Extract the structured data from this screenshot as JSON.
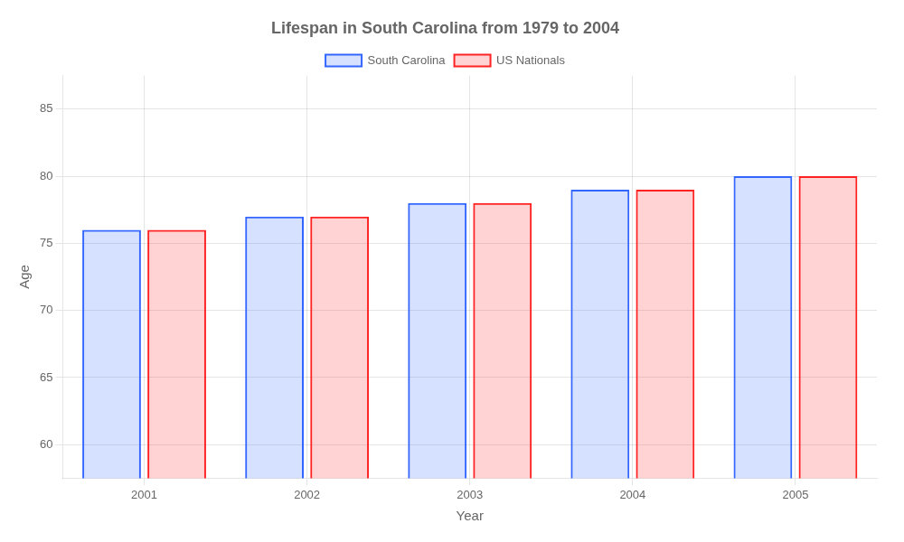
{
  "chart_data": {
    "type": "bar",
    "title": "Lifespan in South Carolina from 1979 to 2004",
    "x_label": "Year",
    "y_label": "Age",
    "categories": [
      "2001",
      "2002",
      "2003",
      "2004",
      "2005"
    ],
    "series": [
      {
        "name": "South Carolina",
        "color": "#3366ff",
        "values": [
          76,
          77,
          78,
          79,
          80
        ]
      },
      {
        "name": "US Nationals",
        "color": "#ff2222",
        "values": [
          76,
          77,
          78,
          79,
          80
        ]
      }
    ],
    "ylim": [
      57.5,
      87.5
    ],
    "yticks": [
      60,
      65,
      70,
      75,
      80,
      85
    ],
    "grid": true,
    "legend": "top"
  }
}
